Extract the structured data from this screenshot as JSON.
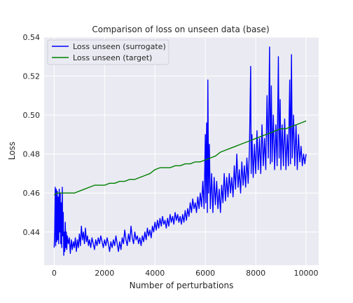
{
  "chart_data": {
    "type": "line",
    "title": "Comparison of loss on unseen data (base)",
    "xlabel": "Number of perturbations",
    "ylabel": "Loss",
    "xlim": [
      -400,
      10500
    ],
    "ylim": [
      0.423,
      0.54
    ],
    "x_ticks": [
      0,
      2000,
      4000,
      6000,
      8000,
      10000
    ],
    "x_tick_labels": [
      "0",
      "2000",
      "4000",
      "6000",
      "8000",
      "10000"
    ],
    "y_ticks": [
      0.44,
      0.46,
      0.48,
      0.5,
      0.52,
      0.54
    ],
    "y_tick_labels": [
      "0.44",
      "0.46",
      "0.48",
      "0.50",
      "0.52",
      "0.54"
    ],
    "grid": true,
    "legend_position": "top-left",
    "series": [
      {
        "name": "Loss unseen (surrogate)",
        "color": "#0000ff",
        "points": [
          [
            0,
            0.432
          ],
          [
            20,
            0.44
          ],
          [
            40,
            0.463
          ],
          [
            60,
            0.433
          ],
          [
            80,
            0.462
          ],
          [
            100,
            0.435
          ],
          [
            120,
            0.461
          ],
          [
            140,
            0.436
          ],
          [
            160,
            0.458
          ],
          [
            180,
            0.434
          ],
          [
            200,
            0.462
          ],
          [
            220,
            0.44
          ],
          [
            240,
            0.46
          ],
          [
            260,
            0.434
          ],
          [
            280,
            0.455
          ],
          [
            300,
            0.432
          ],
          [
            320,
            0.463
          ],
          [
            340,
            0.438
          ],
          [
            360,
            0.45
          ],
          [
            380,
            0.428
          ],
          [
            400,
            0.44
          ],
          [
            420,
            0.43
          ],
          [
            440,
            0.445
          ],
          [
            460,
            0.432
          ],
          [
            480,
            0.44
          ],
          [
            500,
            0.431
          ],
          [
            520,
            0.438
          ],
          [
            560,
            0.434
          ],
          [
            600,
            0.437
          ],
          [
            640,
            0.429
          ],
          [
            680,
            0.436
          ],
          [
            720,
            0.431
          ],
          [
            760,
            0.435
          ],
          [
            800,
            0.432
          ],
          [
            840,
            0.437
          ],
          [
            880,
            0.43
          ],
          [
            920,
            0.436
          ],
          [
            960,
            0.432
          ],
          [
            1000,
            0.439
          ],
          [
            1040,
            0.433
          ],
          [
            1080,
            0.443
          ],
          [
            1120,
            0.436
          ],
          [
            1160,
            0.44
          ],
          [
            1200,
            0.434
          ],
          [
            1240,
            0.442
          ],
          [
            1280,
            0.435
          ],
          [
            1320,
            0.438
          ],
          [
            1360,
            0.433
          ],
          [
            1400,
            0.436
          ],
          [
            1450,
            0.432
          ],
          [
            1500,
            0.437
          ],
          [
            1550,
            0.434
          ],
          [
            1600,
            0.431
          ],
          [
            1650,
            0.436
          ],
          [
            1700,
            0.433
          ],
          [
            1750,
            0.437
          ],
          [
            1800,
            0.434
          ],
          [
            1850,
            0.438
          ],
          [
            1900,
            0.435
          ],
          [
            1950,
            0.432
          ],
          [
            2000,
            0.436
          ],
          [
            2050,
            0.433
          ],
          [
            2100,
            0.437
          ],
          [
            2150,
            0.434
          ],
          [
            2200,
            0.43
          ],
          [
            2250,
            0.435
          ],
          [
            2300,
            0.432
          ],
          [
            2350,
            0.436
          ],
          [
            2400,
            0.433
          ],
          [
            2450,
            0.438
          ],
          [
            2500,
            0.434
          ],
          [
            2550,
            0.43
          ],
          [
            2600,
            0.435
          ],
          [
            2650,
            0.431
          ],
          [
            2700,
            0.437
          ],
          [
            2750,
            0.434
          ],
          [
            2800,
            0.441
          ],
          [
            2850,
            0.436
          ],
          [
            2900,
            0.433
          ],
          [
            2950,
            0.439
          ],
          [
            3000,
            0.435
          ],
          [
            3050,
            0.443
          ],
          [
            3100,
            0.437
          ],
          [
            3150,
            0.434
          ],
          [
            3200,
            0.44
          ],
          [
            3250,
            0.436
          ],
          [
            3300,
            0.438
          ],
          [
            3350,
            0.434
          ],
          [
            3400,
            0.437
          ],
          [
            3450,
            0.433
          ],
          [
            3500,
            0.438
          ],
          [
            3550,
            0.435
          ],
          [
            3600,
            0.44
          ],
          [
            3650,
            0.436
          ],
          [
            3700,
            0.442
          ],
          [
            3750,
            0.438
          ],
          [
            3800,
            0.441
          ],
          [
            3850,
            0.437
          ],
          [
            3900,
            0.443
          ],
          [
            3950,
            0.44
          ],
          [
            4000,
            0.445
          ],
          [
            4050,
            0.441
          ],
          [
            4100,
            0.446
          ],
          [
            4150,
            0.442
          ],
          [
            4200,
            0.447
          ],
          [
            4250,
            0.443
          ],
          [
            4300,
            0.448
          ],
          [
            4350,
            0.444
          ],
          [
            4400,
            0.446
          ],
          [
            4450,
            0.442
          ],
          [
            4500,
            0.447
          ],
          [
            4550,
            0.443
          ],
          [
            4600,
            0.449
          ],
          [
            4650,
            0.445
          ],
          [
            4700,
            0.448
          ],
          [
            4750,
            0.444
          ],
          [
            4800,
            0.45
          ],
          [
            4850,
            0.446
          ],
          [
            4900,
            0.449
          ],
          [
            4950,
            0.445
          ],
          [
            5000,
            0.448
          ],
          [
            5050,
            0.444
          ],
          [
            5100,
            0.449
          ],
          [
            5150,
            0.445
          ],
          [
            5200,
            0.451
          ],
          [
            5250,
            0.446
          ],
          [
            5300,
            0.452
          ],
          [
            5350,
            0.448
          ],
          [
            5400,
            0.455
          ],
          [
            5450,
            0.45
          ],
          [
            5500,
            0.457
          ],
          [
            5550,
            0.452
          ],
          [
            5600,
            0.455
          ],
          [
            5650,
            0.45
          ],
          [
            5700,
            0.458
          ],
          [
            5750,
            0.452
          ],
          [
            5800,
            0.46
          ],
          [
            5850,
            0.453
          ],
          [
            5900,
            0.466
          ],
          [
            5950,
            0.452
          ],
          [
            6000,
            0.49
          ],
          [
            6020,
            0.455
          ],
          [
            6050,
            0.496
          ],
          [
            6080,
            0.45
          ],
          [
            6100,
            0.518
          ],
          [
            6130,
            0.46
          ],
          [
            6160,
            0.485
          ],
          [
            6200,
            0.452
          ],
          [
            6250,
            0.47
          ],
          [
            6300,
            0.45
          ],
          [
            6350,
            0.468
          ],
          [
            6400,
            0.454
          ],
          [
            6450,
            0.466
          ],
          [
            6500,
            0.452
          ],
          [
            6550,
            0.462
          ],
          [
            6600,
            0.45
          ],
          [
            6650,
            0.464
          ],
          [
            6700,
            0.455
          ],
          [
            6750,
            0.47
          ],
          [
            6800,
            0.456
          ],
          [
            6850,
            0.468
          ],
          [
            6900,
            0.458
          ],
          [
            6950,
            0.47
          ],
          [
            7000,
            0.46
          ],
          [
            7050,
            0.468
          ],
          [
            7100,
            0.458
          ],
          [
            7150,
            0.474
          ],
          [
            7200,
            0.462
          ],
          [
            7250,
            0.48
          ],
          [
            7300,
            0.463
          ],
          [
            7350,
            0.472
          ],
          [
            7400,
            0.46
          ],
          [
            7450,
            0.476
          ],
          [
            7500,
            0.464
          ],
          [
            7550,
            0.474
          ],
          [
            7600,
            0.463
          ],
          [
            7650,
            0.478
          ],
          [
            7700,
            0.465
          ],
          [
            7750,
            0.482
          ],
          [
            7800,
            0.525
          ],
          [
            7820,
            0.47
          ],
          [
            7850,
            0.49
          ],
          [
            7900,
            0.468
          ],
          [
            7950,
            0.485
          ],
          [
            8000,
            0.47
          ],
          [
            8050,
            0.492
          ],
          [
            8100,
            0.472
          ],
          [
            8150,
            0.488
          ],
          [
            8200,
            0.47
          ],
          [
            8250,
            0.495
          ],
          [
            8300,
            0.474
          ],
          [
            8350,
            0.488
          ],
          [
            8400,
            0.472
          ],
          [
            8450,
            0.51
          ],
          [
            8500,
            0.478
          ],
          [
            8550,
            0.535
          ],
          [
            8580,
            0.475
          ],
          [
            8620,
            0.515
          ],
          [
            8650,
            0.476
          ],
          [
            8700,
            0.5
          ],
          [
            8750,
            0.472
          ],
          [
            8800,
            0.495
          ],
          [
            8850,
            0.474
          ],
          [
            8900,
            0.53
          ],
          [
            8930,
            0.478
          ],
          [
            8970,
            0.508
          ],
          [
            9000,
            0.472
          ],
          [
            9050,
            0.495
          ],
          [
            9100,
            0.474
          ],
          [
            9150,
            0.498
          ],
          [
            9200,
            0.472
          ],
          [
            9250,
            0.49
          ],
          [
            9300,
            0.474
          ],
          [
            9350,
            0.518
          ],
          [
            9380,
            0.475
          ],
          [
            9420,
            0.531
          ],
          [
            9450,
            0.478
          ],
          [
            9500,
            0.5
          ],
          [
            9550,
            0.474
          ],
          [
            9600,
            0.495
          ],
          [
            9650,
            0.472
          ],
          [
            9700,
            0.49
          ],
          [
            9750,
            0.476
          ],
          [
            9800,
            0.484
          ],
          [
            9850,
            0.474
          ],
          [
            9900,
            0.48
          ],
          [
            9950,
            0.475
          ],
          [
            10000,
            0.48
          ]
        ]
      },
      {
        "name": "Loss unseen (target)",
        "color": "#008000",
        "points": [
          [
            0,
            0.459
          ],
          [
            100,
            0.46
          ],
          [
            200,
            0.46
          ],
          [
            400,
            0.46
          ],
          [
            600,
            0.46
          ],
          [
            800,
            0.46
          ],
          [
            1000,
            0.461
          ],
          [
            1200,
            0.462
          ],
          [
            1400,
            0.463
          ],
          [
            1600,
            0.464
          ],
          [
            1800,
            0.464
          ],
          [
            2000,
            0.464
          ],
          [
            2200,
            0.465
          ],
          [
            2400,
            0.465
          ],
          [
            2600,
            0.466
          ],
          [
            2800,
            0.466
          ],
          [
            3000,
            0.467
          ],
          [
            3200,
            0.467
          ],
          [
            3400,
            0.468
          ],
          [
            3600,
            0.469
          ],
          [
            3800,
            0.47
          ],
          [
            4000,
            0.472
          ],
          [
            4200,
            0.473
          ],
          [
            4400,
            0.473
          ],
          [
            4600,
            0.473
          ],
          [
            4800,
            0.474
          ],
          [
            5000,
            0.474
          ],
          [
            5200,
            0.475
          ],
          [
            5400,
            0.475
          ],
          [
            5600,
            0.476
          ],
          [
            5800,
            0.476
          ],
          [
            6000,
            0.477
          ],
          [
            6200,
            0.478
          ],
          [
            6400,
            0.479
          ],
          [
            6600,
            0.481
          ],
          [
            6800,
            0.482
          ],
          [
            7000,
            0.483
          ],
          [
            7200,
            0.484
          ],
          [
            7400,
            0.485
          ],
          [
            7600,
            0.486
          ],
          [
            7800,
            0.487
          ],
          [
            8000,
            0.488
          ],
          [
            8200,
            0.489
          ],
          [
            8400,
            0.49
          ],
          [
            8600,
            0.491
          ],
          [
            8800,
            0.492
          ],
          [
            9000,
            0.493
          ],
          [
            9200,
            0.493
          ],
          [
            9400,
            0.494
          ],
          [
            9600,
            0.495
          ],
          [
            9800,
            0.496
          ],
          [
            10000,
            0.497
          ]
        ]
      }
    ]
  }
}
